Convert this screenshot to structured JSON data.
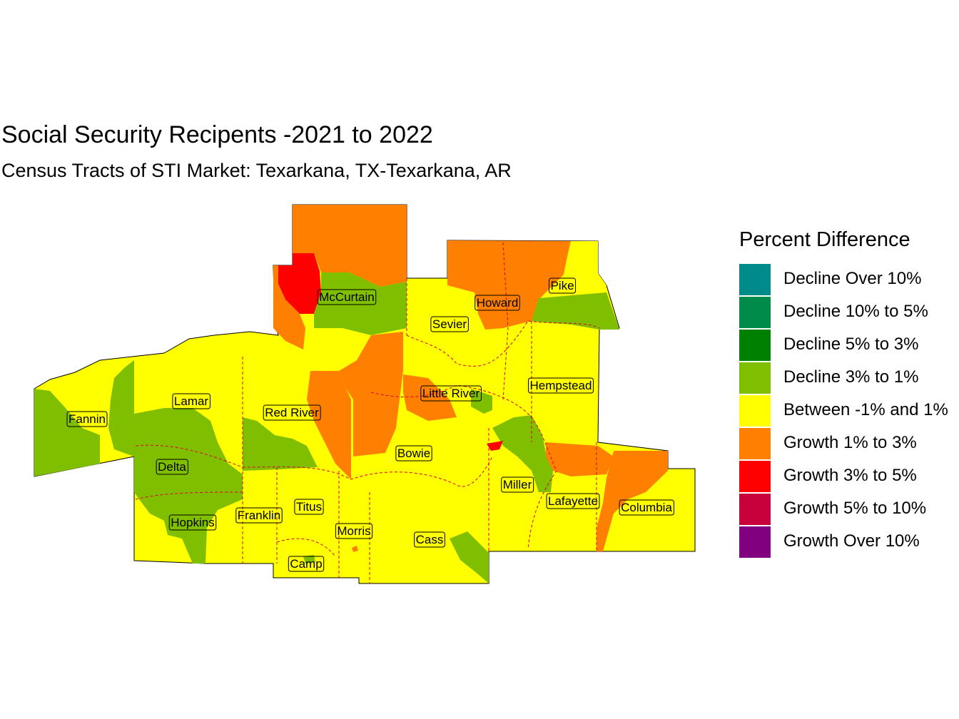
{
  "title": "Social Security Recipents -2021 to 2022",
  "subtitle": "Census Tracts of STI Market: Texarkana, TX-Texarkana, AR",
  "legend": {
    "title": "Percent Difference",
    "items": [
      {
        "label": "Decline Over 10%",
        "color": "#008B8B"
      },
      {
        "label": "Decline 10% to 5%",
        "color": "#008B4A"
      },
      {
        "label": "Decline 5% to 3%",
        "color": "#008000"
      },
      {
        "label": "Decline 3% to 1%",
        "color": "#7FBF00"
      },
      {
        "label": "Between -1% and 1%",
        "color": "#FFFF00"
      },
      {
        "label": "Growth 1% to 3%",
        "color": "#FF8000"
      },
      {
        "label": "Growth 3% to 5%",
        "color": "#FF0000"
      },
      {
        "label": "Growth 5% to 10%",
        "color": "#C8003C"
      },
      {
        "label": "Growth Over 10%",
        "color": "#800080"
      }
    ]
  },
  "counties": [
    {
      "name": "McCurtain"
    },
    {
      "name": "Howard"
    },
    {
      "name": "Pike"
    },
    {
      "name": "Sevier"
    },
    {
      "name": "Little River"
    },
    {
      "name": "Hempstead"
    },
    {
      "name": "Lamar"
    },
    {
      "name": "Red River"
    },
    {
      "name": "Fannin"
    },
    {
      "name": "Bowie"
    },
    {
      "name": "Delta"
    },
    {
      "name": "Miller"
    },
    {
      "name": "Lafayette"
    },
    {
      "name": "Columbia"
    },
    {
      "name": "Titus"
    },
    {
      "name": "Franklin"
    },
    {
      "name": "Hopkins"
    },
    {
      "name": "Morris"
    },
    {
      "name": "Cass"
    },
    {
      "name": "Camp"
    }
  ]
}
